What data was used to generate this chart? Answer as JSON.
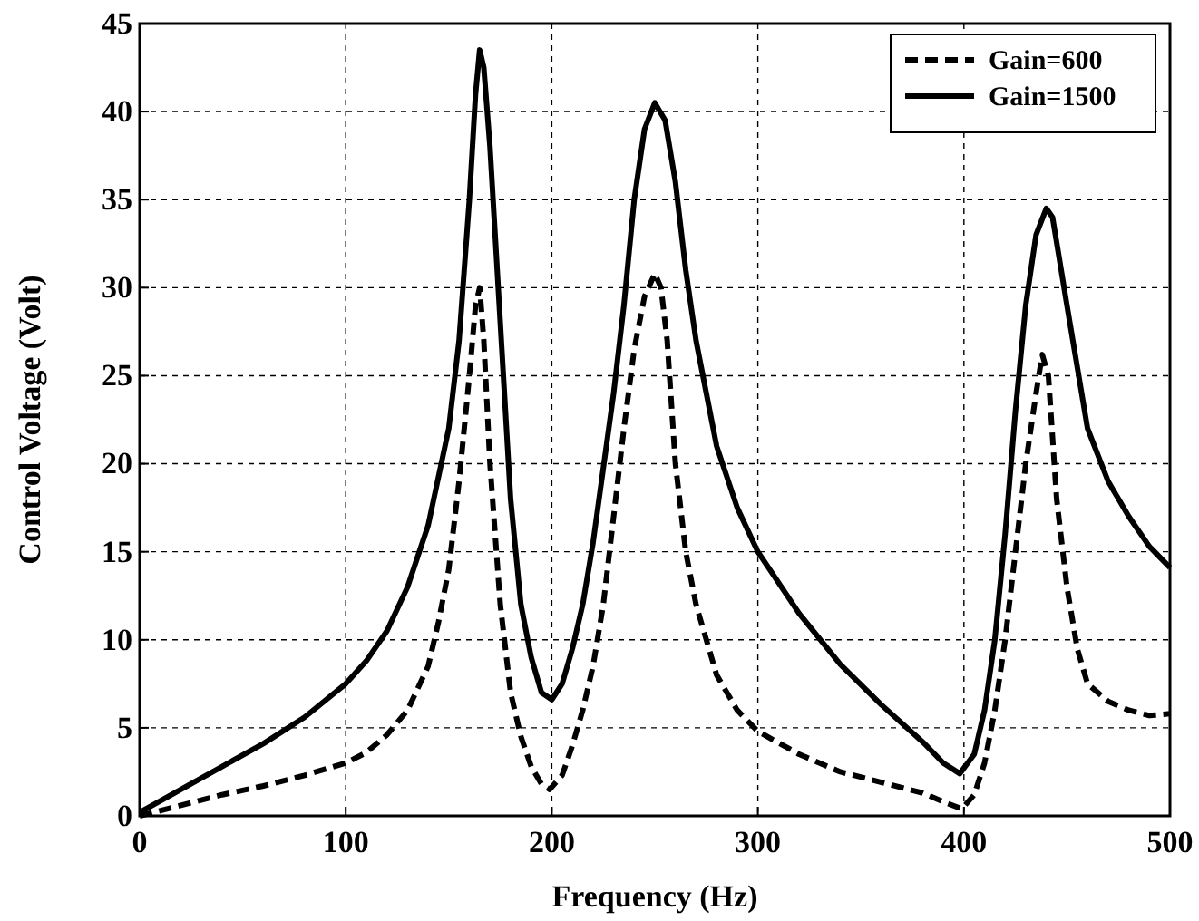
{
  "chart_data": {
    "type": "line",
    "xlabel": "Frequency (Hz)",
    "ylabel": "Control Voltage (Volt)",
    "xlim": [
      0,
      500
    ],
    "xticks": [
      0,
      100,
      200,
      300,
      400,
      500
    ],
    "ylim": [
      0,
      45
    ],
    "yticks": [
      0,
      5,
      10,
      15,
      20,
      25,
      30,
      35,
      40,
      45
    ],
    "grid": true,
    "legend": "top right",
    "marker": "none",
    "series": [
      {
        "name": "Gain=600",
        "color": "#000000",
        "line_style": "dashed",
        "x": [
          0,
          20,
          40,
          60,
          80,
          100,
          110,
          120,
          130,
          140,
          145,
          150,
          155,
          160,
          163,
          165,
          167,
          170,
          175,
          180,
          185,
          190,
          195,
          199,
          205,
          210,
          215,
          220,
          225,
          230,
          235,
          240,
          245,
          250,
          253,
          256,
          260,
          265,
          270,
          280,
          290,
          300,
          320,
          340,
          360,
          380,
          390,
          399,
          405,
          410,
          415,
          420,
          425,
          430,
          435,
          438,
          441,
          445,
          450,
          455,
          460,
          470,
          480,
          490,
          500
        ],
        "values": [
          0,
          0.6,
          1.2,
          1.7,
          2.3,
          3,
          3.6,
          4.6,
          6,
          8.5,
          11,
          14,
          19,
          25,
          29,
          30,
          27,
          20,
          12,
          7,
          4.5,
          2.8,
          1.8,
          1.5,
          2.3,
          4,
          6,
          8.5,
          12,
          17,
          22,
          26.5,
          29.5,
          30.8,
          30,
          27,
          20,
          15,
          12,
          8,
          6,
          4.8,
          3.5,
          2.5,
          1.9,
          1.3,
          0.8,
          0.4,
          1.2,
          3,
          6,
          10,
          15,
          20,
          24,
          26.2,
          25,
          18,
          13,
          9.5,
          7.5,
          6.5,
          6,
          5.7,
          5.8
        ]
      },
      {
        "name": "Gain=1500",
        "color": "#000000",
        "line_style": "solid",
        "x": [
          0,
          20,
          40,
          60,
          80,
          100,
          110,
          120,
          130,
          140,
          150,
          155,
          160,
          163,
          165,
          167,
          170,
          175,
          180,
          185,
          190,
          195,
          200,
          205,
          210,
          215,
          220,
          230,
          235,
          240,
          245,
          250,
          255,
          260,
          265,
          270,
          280,
          290,
          300,
          320,
          340,
          360,
          380,
          390,
          398,
          405,
          410,
          415,
          420,
          425,
          430,
          435,
          440,
          443,
          450,
          460,
          470,
          480,
          490,
          500
        ],
        "values": [
          0.2,
          1.5,
          2.8,
          4.1,
          5.6,
          7.5,
          8.8,
          10.5,
          13,
          16.5,
          22,
          27,
          35,
          41,
          43.5,
          42.5,
          38,
          28,
          18,
          12,
          9,
          7,
          6.6,
          7.5,
          9.5,
          12,
          15.5,
          24,
          29,
          35,
          39,
          40.5,
          39.5,
          36,
          31,
          27,
          21,
          17.5,
          15,
          11.5,
          8.6,
          6.3,
          4.2,
          3,
          2.4,
          3.5,
          6,
          10,
          16,
          23,
          29,
          33,
          34.5,
          34,
          29,
          22,
          19,
          17,
          15.3,
          14.1
        ]
      }
    ]
  }
}
